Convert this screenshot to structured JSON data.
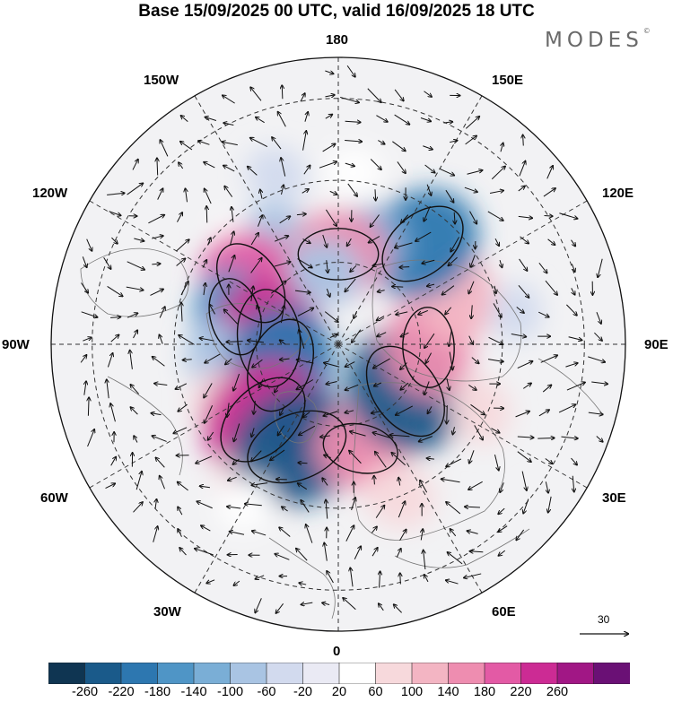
{
  "header": {
    "title": "Base 15/09/2025 00 UTC, valid 16/09/2025 18 UTC",
    "logo_text": "MODES",
    "logo_mark": "©"
  },
  "map": {
    "projection": "north-polar-stereographic",
    "longitude_labels": {
      "top": "180",
      "bottom": "0",
      "left": "90W",
      "right": "90E",
      "upper_left_1": "150W",
      "upper_left_2": "120W",
      "upper_right_1": "150E",
      "upper_right_2": "120E",
      "lower_left_1": "60W",
      "lower_left_2": "30W",
      "lower_right_1": "60E",
      "lower_right_2": "30E"
    },
    "reference_vector": {
      "label": "30"
    },
    "anomaly_fields": [
      {
        "lon": -150,
        "colat": 30,
        "value": -90
      },
      {
        "lon": -135,
        "colat": 36,
        "value": 20
      },
      {
        "lon": -125,
        "colat": 26,
        "value": 190
      },
      {
        "lon": -105,
        "colat": 26,
        "value": -150
      },
      {
        "lon": -95,
        "colat": 17,
        "value": 230
      },
      {
        "lon": -85,
        "colat": 30,
        "value": -70
      },
      {
        "lon": -70,
        "colat": 15,
        "value": -220
      },
      {
        "lon": -65,
        "colat": 32,
        "value": 60
      },
      {
        "lon": -45,
        "colat": 26,
        "value": 240
      },
      {
        "lon": -35,
        "colat": 38,
        "value": 60
      },
      {
        "lon": -22,
        "colat": 27,
        "value": -250
      },
      {
        "lon": -30,
        "colat": 45,
        "value": 40
      },
      {
        "lon": 12,
        "colat": 26,
        "value": 140
      },
      {
        "lon": 22,
        "colat": 40,
        "value": 80
      },
      {
        "lon": 38,
        "colat": 22,
        "value": 70
      },
      {
        "lon": 55,
        "colat": 20,
        "value": -240
      },
      {
        "lon": 65,
        "colat": 38,
        "value": 70
      },
      {
        "lon": 88,
        "colat": 22,
        "value": 160
      },
      {
        "lon": 110,
        "colat": 31,
        "value": 120
      },
      {
        "lon": 140,
        "colat": 32,
        "value": -210
      },
      {
        "lon": 165,
        "colat": 25,
        "value": -120
      },
      {
        "lon": 180,
        "colat": 22,
        "value": 160
      },
      {
        "lon": -170,
        "colat": 18,
        "value": -90
      },
      {
        "lon": 175,
        "colat": 42,
        "value": 40
      },
      {
        "lon": -160,
        "colat": 44,
        "value": -50
      },
      {
        "lon": 100,
        "colat": 44,
        "value": -40
      }
    ]
  },
  "colorbar": {
    "tick_labels": [
      "-260",
      "-220",
      "-180",
      "-140",
      "-100",
      "-60",
      "-20",
      "20",
      "60",
      "100",
      "140",
      "180",
      "220",
      "260"
    ],
    "colors": [
      "#0f3552",
      "#1a5a8a",
      "#2d77b0",
      "#4f95c6",
      "#7aaed6",
      "#a9c4e3",
      "#d2daee",
      "#eaeaf4",
      "#ffffff",
      "#f7d9dc",
      "#f3b5c3",
      "#ee8db0",
      "#e35aa5",
      "#cc2b94",
      "#a11785",
      "#6a1075"
    ]
  }
}
